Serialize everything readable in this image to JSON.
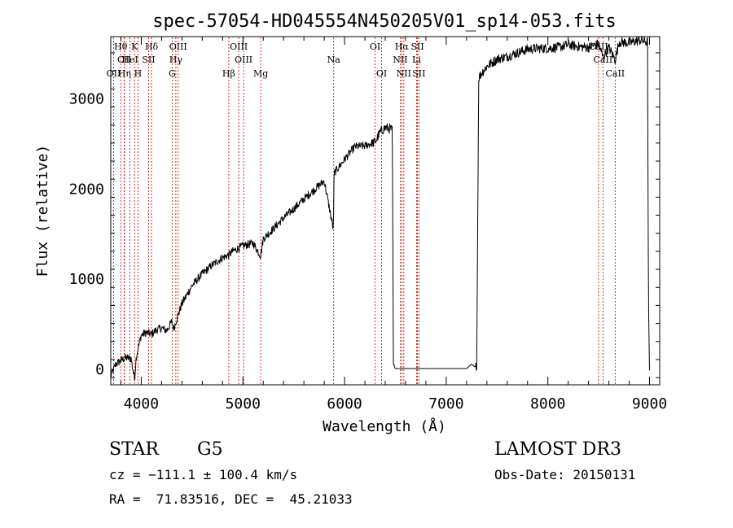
{
  "chart_data": {
    "type": "line",
    "title": "spec-57054-HD045554N450205V01_sp14-053.fits",
    "xlabel": "Wavelength (Å)",
    "ylabel": "Flux (relative)",
    "xlim": [
      3700,
      9100
    ],
    "ylim": [
      -180,
      3680
    ],
    "xticks": [
      4000,
      5000,
      6000,
      7000,
      8000,
      9000
    ],
    "yticks": [
      0,
      1000,
      2000,
      3000
    ],
    "xtick_labels": [
      "4000",
      "5000",
      "6000",
      "7000",
      "8000",
      "9000"
    ],
    "ytick_labels": [
      "0",
      "1000",
      "2000",
      "3000"
    ],
    "grid": false,
    "series": [
      {
        "name": "flux",
        "color": "#000000",
        "x": [
          3700,
          3750,
          3800,
          3850,
          3900,
          3934,
          3950,
          3968,
          4000,
          4050,
          4101,
          4150,
          4200,
          4250,
          4300,
          4320,
          4340,
          4400,
          4500,
          4600,
          4700,
          4800,
          4861,
          4900,
          5000,
          5100,
          5175,
          5200,
          5300,
          5400,
          5500,
          5600,
          5700,
          5800,
          5890,
          5895,
          5900,
          6000,
          6100,
          6200,
          6300,
          6350,
          6400,
          6450,
          6470,
          6480,
          6500,
          6600,
          6800,
          7000,
          7200,
          7250,
          7280,
          7300,
          7320,
          7350,
          7400,
          7500,
          7600,
          7700,
          7800,
          7900,
          8000,
          8100,
          8200,
          8300,
          8400,
          8500,
          8542,
          8600,
          8662,
          8700,
          8800,
          8900,
          8980,
          8990,
          9000
        ],
        "y": [
          -80,
          50,
          90,
          120,
          110,
          -120,
          130,
          220,
          370,
          400,
          380,
          430,
          450,
          420,
          520,
          440,
          520,
          720,
          920,
          1050,
          1150,
          1230,
          1260,
          1300,
          1360,
          1390,
          1250,
          1440,
          1550,
          1670,
          1770,
          1880,
          1980,
          2080,
          1540,
          2050,
          2170,
          2320,
          2460,
          2470,
          2510,
          2620,
          2670,
          2660,
          2640,
          30,
          0,
          0,
          0,
          0,
          0,
          50,
          20,
          30,
          3220,
          3280,
          3350,
          3430,
          3460,
          3500,
          3540,
          3550,
          3550,
          3560,
          3590,
          3570,
          3560,
          3600,
          3450,
          3560,
          3420,
          3620,
          3610,
          3640,
          3620,
          700,
          -20
        ]
      }
    ],
    "lines": [
      {
        "name": "Hθ",
        "wl": 3798,
        "row": 1
      },
      {
        "name": "CII",
        "wl": 3833,
        "row": 2
      },
      {
        "name": "OII",
        "wl": 3728,
        "row": 3
      },
      {
        "name": "K",
        "wl": 3934,
        "row": 1
      },
      {
        "name": "HeI",
        "wl": 3889,
        "row": 2
      },
      {
        "name": "Hη",
        "wl": 3835,
        "row": 3
      },
      {
        "name": "H",
        "wl": 3968,
        "row": 3
      },
      {
        "name": "Hδ",
        "wl": 4101,
        "row": 1
      },
      {
        "name": "SII",
        "wl": 4072,
        "row": 2
      },
      {
        "name": "OIII",
        "wl": 4363,
        "row": 1
      },
      {
        "name": "Hγ",
        "wl": 4340,
        "row": 2
      },
      {
        "name": "G",
        "wl": 4304,
        "row": 3
      },
      {
        "name": "Hβ",
        "wl": 4861,
        "row": 3
      },
      {
        "name": "OIII",
        "wl": 4959,
        "row": 1
      },
      {
        "name": "OIII",
        "wl": 5007,
        "row": 2
      },
      {
        "name": "Mg",
        "wl": 5175,
        "row": 3
      },
      {
        "name": "Na",
        "wl": 5893,
        "row": 2
      },
      {
        "name": "OI",
        "wl": 6300,
        "row": 1
      },
      {
        "name": "OI",
        "wl": 6364,
        "row": 3
      },
      {
        "name": "Hα",
        "wl": 6563,
        "row": 1
      },
      {
        "name": "NII",
        "wl": 6548,
        "row": 2
      },
      {
        "name": "NII",
        "wl": 6583,
        "row": 3
      },
      {
        "name": "SII",
        "wl": 6717,
        "row": 1
      },
      {
        "name": "Li",
        "wl": 6708,
        "row": 2
      },
      {
        "name": "SII",
        "wl": 6731,
        "row": 3
      },
      {
        "name": "CaII",
        "wl": 8498,
        "row": 1
      },
      {
        "name": "CaII",
        "wl": 8542,
        "row": 2
      },
      {
        "name": "CaII",
        "wl": 8662,
        "row": 3
      }
    ],
    "line_color": "#c00000",
    "annotations": {
      "object_class": "STAR",
      "subclass": "G5",
      "survey": "LAMOST DR3",
      "redshift": "cz = −111.1 ± 100.4 km/s",
      "obs_date": "Obs-Date: 20150131",
      "coords": "RA =  71.83516, DEC =  45.21033"
    }
  }
}
